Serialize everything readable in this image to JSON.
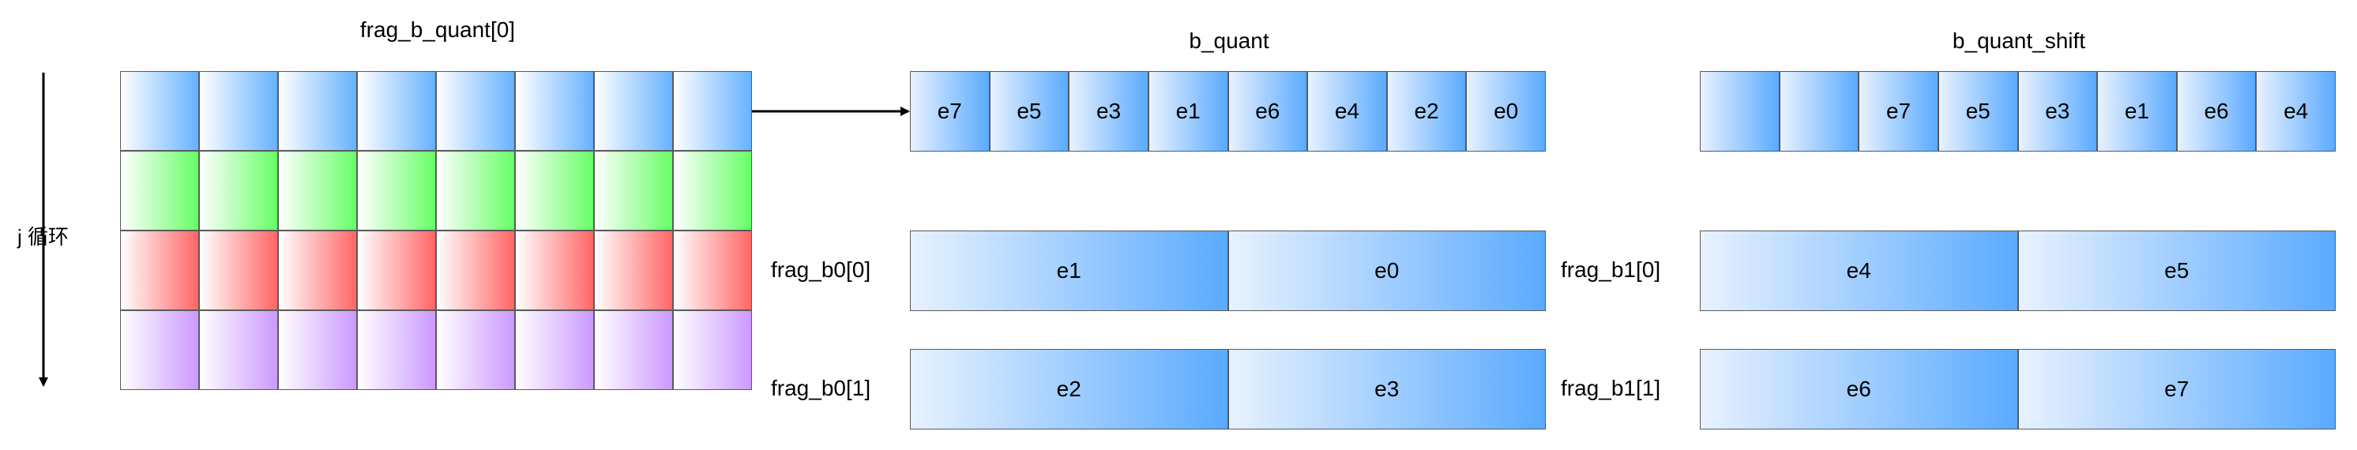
{
  "titles": {
    "frag": "frag_b_quant[0]",
    "bquant": "b_quant",
    "bshift": "b_quant_shift"
  },
  "loop_label": "j 循环",
  "frag_grid": {
    "rows": 4,
    "cols": 8,
    "row_colors": [
      "blue",
      "green",
      "red",
      "purple"
    ]
  },
  "b_quant": [
    "e7",
    "e5",
    "e3",
    "e1",
    "e6",
    "e4",
    "e2",
    "e0"
  ],
  "b_quant_shift": [
    "",
    "",
    "e7",
    "e5",
    "e3",
    "e1",
    "e6",
    "e4"
  ],
  "frag_b0": [
    {
      "label": "frag_b0[0]",
      "cells": [
        "e1",
        "e0"
      ]
    },
    {
      "label": "frag_b0[1]",
      "cells": [
        "e2",
        "e3"
      ]
    }
  ],
  "frag_b1": [
    {
      "label": "frag_b1[0]",
      "cells": [
        "e4",
        "e5"
      ]
    },
    {
      "label": "frag_b1[1]",
      "cells": [
        "e6",
        "e7"
      ]
    }
  ]
}
